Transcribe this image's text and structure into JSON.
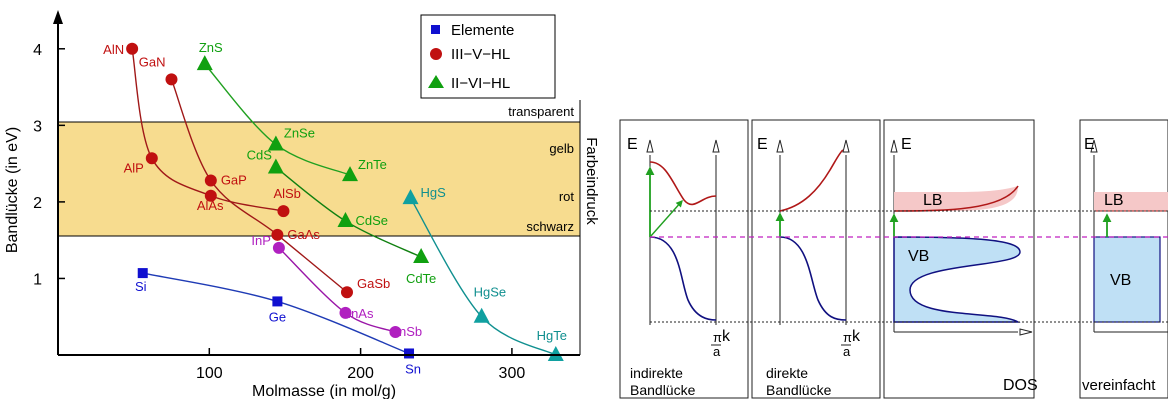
{
  "chart_data": {
    "type": "scatter",
    "xlabel": "Molmasse (in mol/g)",
    "ylabel": "Bandlücke   (in eV)",
    "right_label": "Farbeindruck",
    "xlim": [
      0,
      345
    ],
    "ylim": [
      0,
      4.35
    ],
    "x_ticks": [
      100,
      200,
      300
    ],
    "y_ticks": [
      1,
      2,
      3,
      4
    ],
    "legend": {
      "placement": "top-right",
      "entries": [
        {
          "label": "Elemente",
          "marker": "square",
          "color": "#1010d0"
        },
        {
          "label": "III−V−HL",
          "marker": "circle",
          "color": "#c01010"
        },
        {
          "label": "II−VI−HL",
          "marker": "triangle",
          "color": "#10a010"
        }
      ]
    },
    "regions": [
      {
        "label": "transparent",
        "y": 3.1
      },
      {
        "label": "gelb",
        "y": 2.85
      },
      {
        "label": "rot",
        "y": 2.1
      },
      {
        "label": "schwarz",
        "y": 1.75
      }
    ],
    "band_region": {
      "ymin": 1.6,
      "ymax": 3.1,
      "color": "#f7dc8f"
    },
    "series": [
      {
        "group": "elements",
        "color": "#1f3bb5",
        "marker_color": "#1010d0",
        "marker": "square",
        "points": [
          {
            "label": "Si",
            "x": 56,
            "y": 1.07
          },
          {
            "label": "Ge",
            "x": 145,
            "y": 0.7
          },
          {
            "label": "Sn",
            "x": 232,
            "y": 0.02
          }
        ]
      },
      {
        "group": "iii-v",
        "color": "#a01818",
        "marker_color": "#c01010",
        "marker": "circle",
        "points": [
          {
            "label": "AlN",
            "x": 49,
            "y": 4.0
          },
          {
            "label": "AlP",
            "x": 62,
            "y": 2.57
          },
          {
            "label": "AlAs",
            "x": 101,
            "y": 2.08
          },
          {
            "label": "AlSb",
            "x": 149,
            "y": 1.88
          }
        ]
      },
      {
        "group": "iii-v",
        "color": "#a01818",
        "marker_color": "#c01010",
        "marker": "circle",
        "points": [
          {
            "label": "GaN",
            "x": 75,
            "y": 3.6
          },
          {
            "label": "GaP",
            "x": 101,
            "y": 2.28
          },
          {
            "label": "GaAs",
            "x": 145,
            "y": 1.57
          },
          {
            "label": "GaSb",
            "x": 191,
            "y": 0.82
          }
        ]
      },
      {
        "group": "iii-v-in",
        "color": "#9a16a8",
        "marker_color": "#b020c0",
        "marker": "circle",
        "points": [
          {
            "label": "InP",
            "x": 146,
            "y": 1.4
          },
          {
            "label": "InAs",
            "x": 190,
            "y": 0.55
          },
          {
            "label": "InSb",
            "x": 223,
            "y": 0.3
          }
        ]
      },
      {
        "group": "ii-vi-zn",
        "color": "#20a020",
        "marker_color": "#10a010",
        "marker": "triangle",
        "points": [
          {
            "label": "ZnS",
            "x": 97,
            "y": 3.8
          },
          {
            "label": "ZnSe",
            "x": 144,
            "y": 2.75
          },
          {
            "label": "ZnTe",
            "x": 193,
            "y": 2.35
          }
        ]
      },
      {
        "group": "ii-vi-cd",
        "color": "#108010",
        "marker_color": "#10a010",
        "marker": "triangle",
        "points": [
          {
            "label": "CdS",
            "x": 144,
            "y": 2.45
          },
          {
            "label": "CdSe",
            "x": 190,
            "y": 1.75
          },
          {
            "label": "CdTe",
            "x": 240,
            "y": 1.28
          }
        ]
      },
      {
        "group": "ii-vi-hg",
        "color": "#109090",
        "marker_color": "#10a0a0",
        "marker": "triangle",
        "points": [
          {
            "label": "HgS",
            "x": 233,
            "y": 2.05
          },
          {
            "label": "HgSe",
            "x": 280,
            "y": 0.5
          },
          {
            "label": "HgTe",
            "x": 329,
            "y": 0.0
          }
        ]
      }
    ]
  },
  "band_diagrams": {
    "panels": [
      {
        "id": "indirect",
        "axis_label": "E",
        "k_label": "k",
        "pi_top": "π",
        "pi_bottom": "a",
        "caption_line1": "indirekte",
        "caption_line2": "Bandlücke"
      },
      {
        "id": "direct",
        "axis_label": "E",
        "k_label": "k",
        "pi_top": "π",
        "pi_bottom": "a",
        "caption_line1": "direkte",
        "caption_line2": "Bandlücke"
      },
      {
        "id": "dos",
        "axis_label": "E",
        "conduction_label": "LB",
        "valence_label": "VB",
        "x_label": "DOS"
      },
      {
        "id": "simplified",
        "axis_label": "E",
        "conduction_label": "LB",
        "valence_label": "VB",
        "caption": "vereinfacht"
      }
    ],
    "colors": {
      "conduction": "#b01818",
      "valence": "#101080",
      "arrow": "#20a020",
      "vb_fill": "#bfe0f5",
      "lb_fill": "#f5c8c8"
    }
  }
}
